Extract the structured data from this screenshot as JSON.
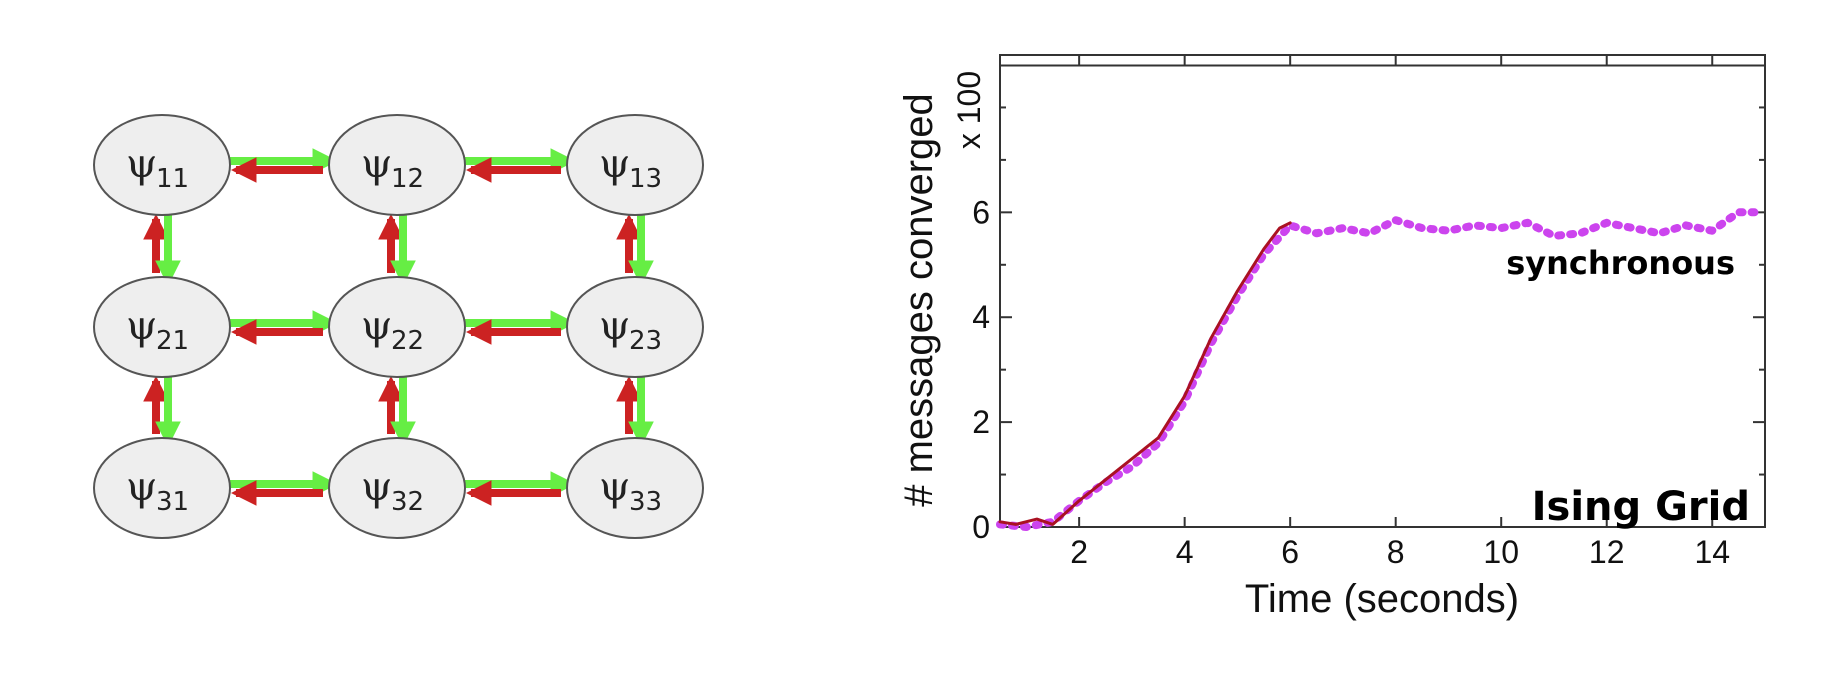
{
  "graph": {
    "nodes": [
      {
        "greek": "ψ",
        "sub": "11"
      },
      {
        "greek": "ψ",
        "sub": "12"
      },
      {
        "greek": "ψ",
        "sub": "13"
      },
      {
        "greek": "ψ",
        "sub": "21"
      },
      {
        "greek": "ψ",
        "sub": "22"
      },
      {
        "greek": "ψ",
        "sub": "23"
      },
      {
        "greek": "ψ",
        "sub": "31"
      },
      {
        "greek": "ψ",
        "sub": "32"
      },
      {
        "greek": "ψ",
        "sub": "33"
      }
    ],
    "colors": {
      "node_fill": "#eeeeee",
      "node_stroke": "#555555",
      "forward_arrow": "#66ee44",
      "backward_arrow": "#cc2222"
    }
  },
  "chart_data": {
    "type": "line",
    "title": "",
    "xlabel": "Time (seconds)",
    "ylabel": "# messages converged",
    "ylabel_multiplier": "x 100",
    "xlim": [
      0.5,
      15
    ],
    "ylim": [
      0,
      9
    ],
    "xticks": [
      2,
      4,
      6,
      8,
      10,
      12,
      14
    ],
    "yticks": [
      0,
      2,
      4,
      6
    ],
    "reference_line": {
      "y": 8.8
    },
    "annotations": [
      "synchronous",
      "Ising Grid"
    ],
    "series": [
      {
        "style": "solid",
        "color": "#aa1122",
        "x": [
          0.5,
          0.8,
          1.2,
          1.5,
          2.0,
          2.5,
          3.0,
          3.5,
          4.0,
          4.5,
          5.0,
          5.5,
          5.8,
          6.0
        ],
        "y": [
          0.1,
          0.05,
          0.15,
          0.05,
          0.5,
          0.9,
          1.3,
          1.7,
          2.5,
          3.6,
          4.5,
          5.3,
          5.7,
          5.8
        ]
      },
      {
        "style": "dotted",
        "color": "#cc44ee",
        "x": [
          0.5,
          1.0,
          1.5,
          2.0,
          2.5,
          3.0,
          3.5,
          4.0,
          4.5,
          5.0,
          5.5,
          6.0,
          6.5,
          7.0,
          7.5,
          8.0,
          8.5,
          9.0,
          9.5,
          10.0,
          10.5,
          11.0,
          11.5,
          12.0,
          12.5,
          13.0,
          13.5,
          14.0,
          14.5,
          14.8
        ],
        "y": [
          0.05,
          0.0,
          0.1,
          0.5,
          0.85,
          1.15,
          1.6,
          2.4,
          3.5,
          4.4,
          5.2,
          5.75,
          5.6,
          5.7,
          5.6,
          5.85,
          5.7,
          5.65,
          5.75,
          5.7,
          5.8,
          5.55,
          5.6,
          5.8,
          5.7,
          5.6,
          5.75,
          5.65,
          6.0,
          6.0
        ]
      }
    ]
  }
}
